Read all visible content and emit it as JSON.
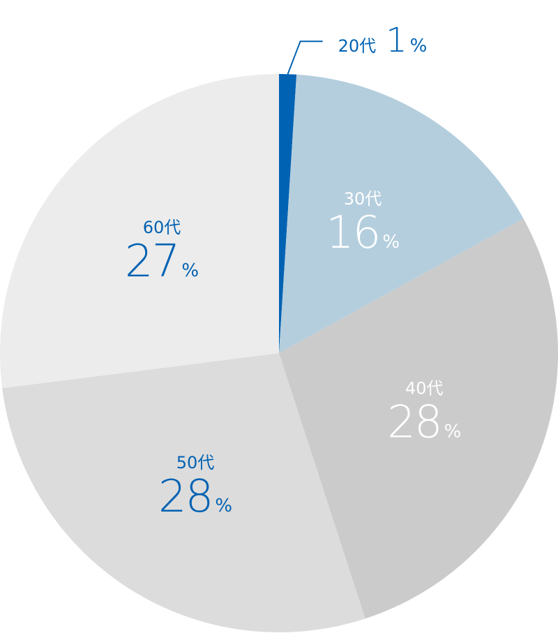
{
  "chart_data": {
    "type": "pie",
    "start": "top",
    "direction": "clockwise",
    "unit": "%",
    "slices": [
      {
        "label": "20代",
        "value": 1,
        "color": "#0062b3",
        "text_color": "#0062b3",
        "label_position": "outside"
      },
      {
        "label": "30代",
        "value": 16,
        "color": "#b4cedd",
        "text_color": "#ffffff",
        "label_position": "inside"
      },
      {
        "label": "40代",
        "value": 28,
        "color": "#cbcbcb",
        "text_color": "#ffffff",
        "label_position": "inside"
      },
      {
        "label": "50代",
        "value": 28,
        "color": "#dcdcdc",
        "text_color": "#0062b3",
        "label_position": "inside"
      },
      {
        "label": "60代",
        "value": 27,
        "color": "#ececec",
        "text_color": "#0062b3",
        "label_position": "inside"
      }
    ]
  }
}
